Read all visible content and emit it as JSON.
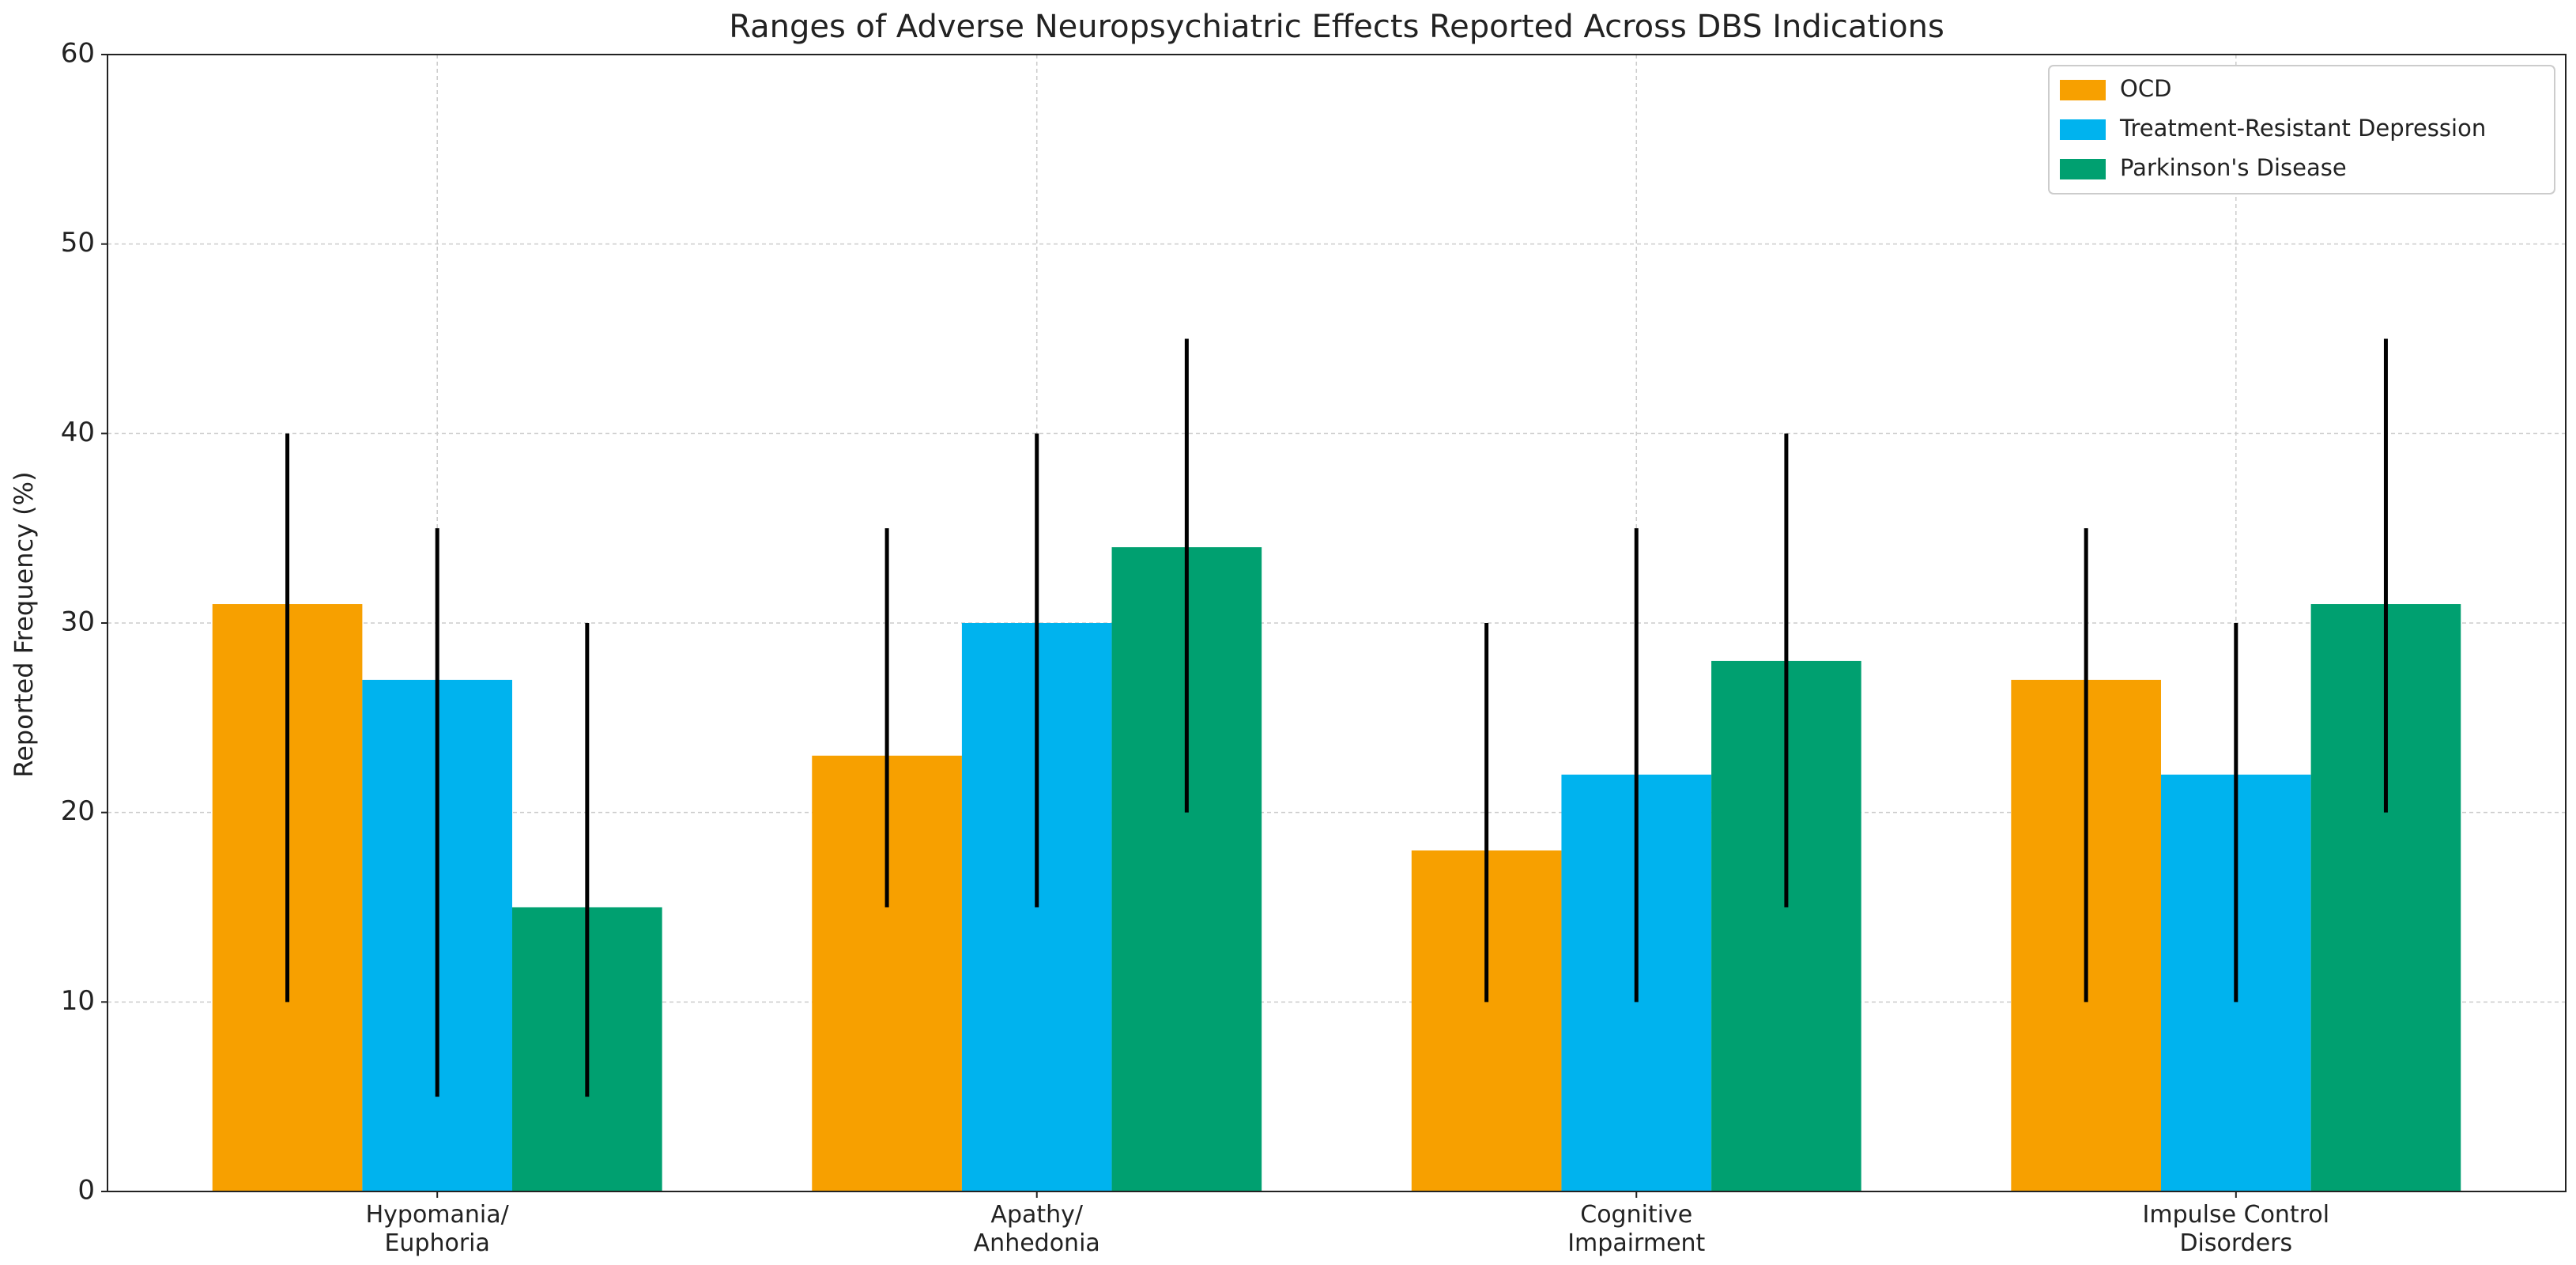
{
  "chart_data": {
    "type": "bar",
    "title": "Ranges of Adverse Neuropsychiatric Effects Reported Across DBS Indications",
    "y_label": "Reported Frequency (%)",
    "categories": [
      "Hypomania/\nEuphoria",
      "Apathy/\nAnhedonia",
      "Cognitive\nImpairment",
      "Impulse Control\nDisorders"
    ],
    "series": [
      {
        "name": "OCD",
        "color": "#f7a000",
        "values": [
          31,
          23,
          18,
          27
        ],
        "range_low": [
          10,
          15,
          10,
          10
        ],
        "range_high": [
          40,
          35,
          30,
          35
        ]
      },
      {
        "name": "Treatment-Resistant Depression",
        "color": "#00b3ee",
        "values": [
          27,
          30,
          22,
          22
        ],
        "range_low": [
          5,
          15,
          10,
          10
        ],
        "range_high": [
          35,
          40,
          35,
          30
        ]
      },
      {
        "name": "Parkinson's Disease",
        "color": "#00a070",
        "values": [
          15,
          34,
          28,
          31
        ],
        "range_low": [
          5,
          20,
          15,
          20
        ],
        "range_high": [
          30,
          45,
          40,
          45
        ]
      }
    ],
    "ylim": [
      0,
      60
    ],
    "yticks": [
      0,
      10,
      20,
      30,
      40,
      50,
      60
    ],
    "grid": true,
    "legend": "upper right"
  }
}
